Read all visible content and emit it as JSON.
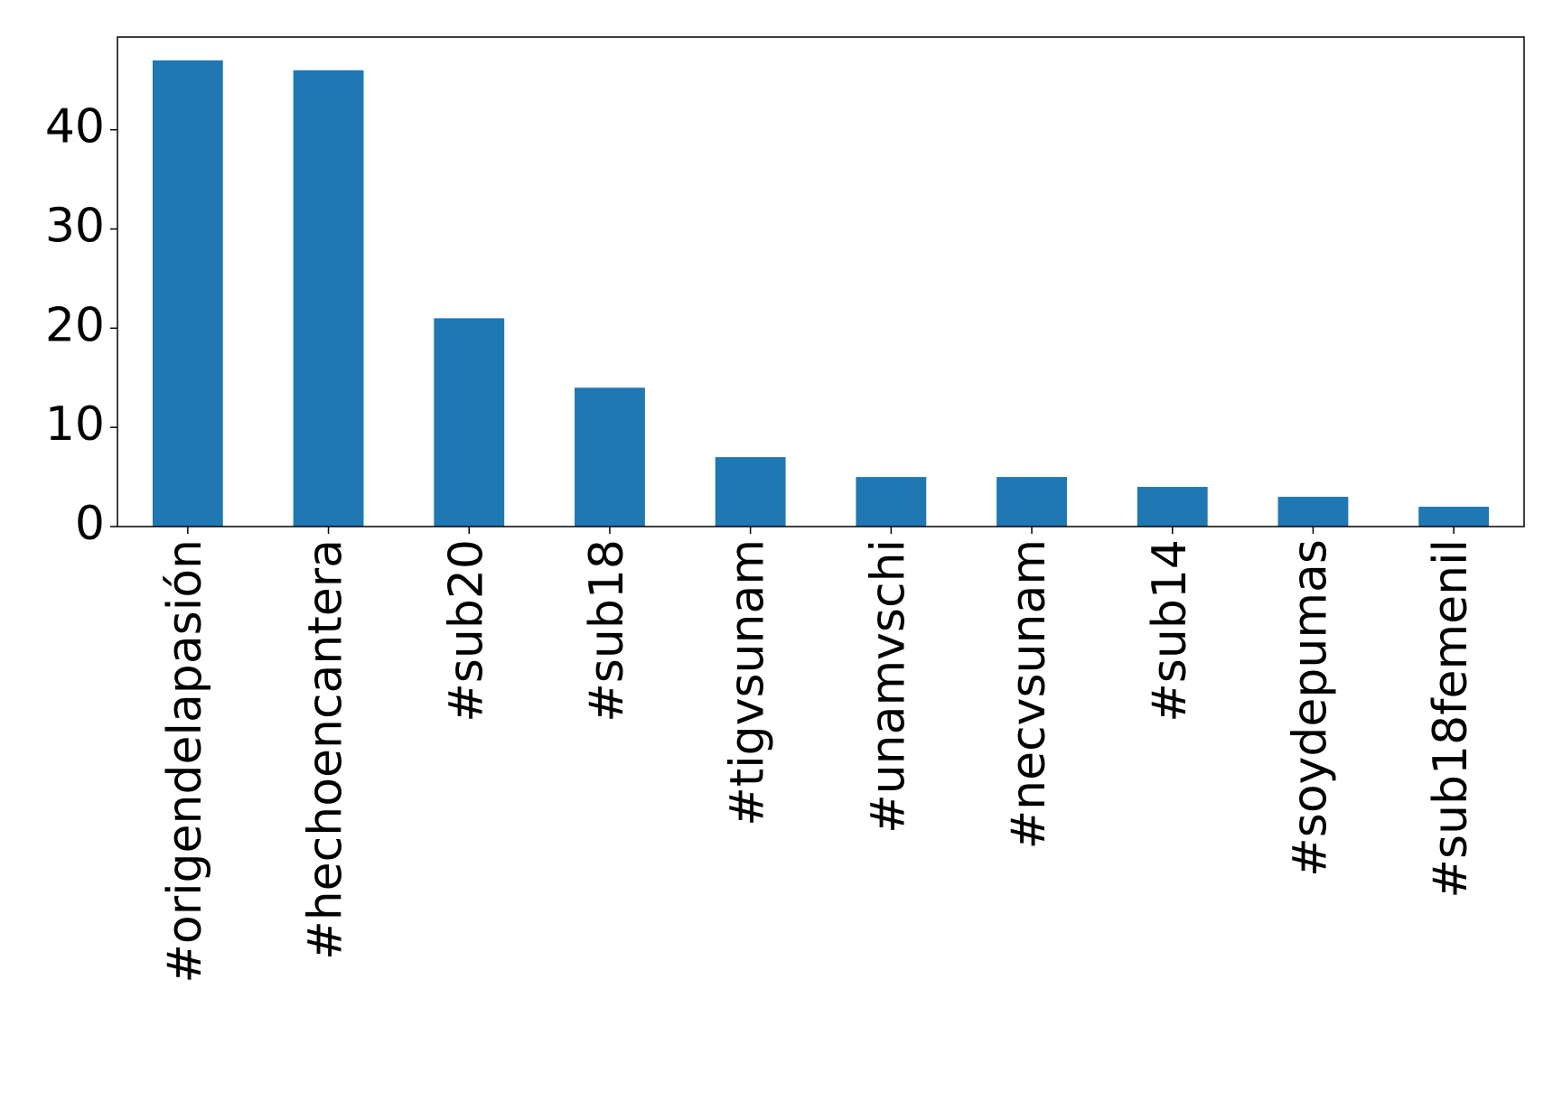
{
  "chart_data": {
    "type": "bar",
    "categories": [
      "#origendelapasión",
      "#hechoencantera",
      "#sub20",
      "#sub18",
      "#tigvsunam",
      "#unamvschi",
      "#necvsunam",
      "#sub14",
      "#soydepumas",
      "#sub18femenil"
    ],
    "values": [
      47,
      46,
      21,
      14,
      7,
      5,
      5,
      4,
      3,
      2
    ],
    "color": "#1f77b4",
    "ylim": [
      0,
      49.35
    ],
    "yticks": [
      0,
      10,
      20,
      30,
      40
    ],
    "grid": false
  }
}
